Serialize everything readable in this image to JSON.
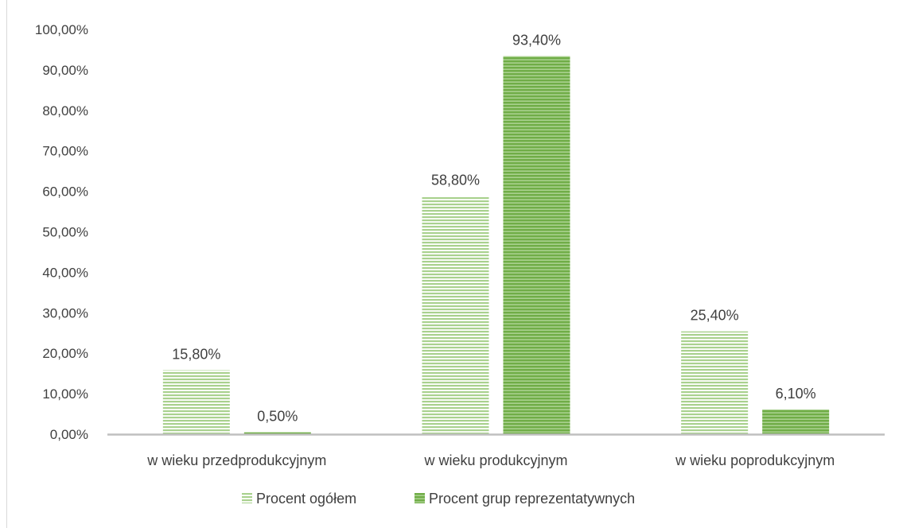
{
  "chart_data": {
    "type": "bar",
    "title": "",
    "xlabel": "",
    "ylabel": "",
    "categories": [
      "w wieku przedprodukcyjnym",
      "w wieku produkcyjnym",
      "w wieku poprodukcyjnym"
    ],
    "series": [
      {
        "name": "Procent ogółem",
        "values": [
          15.8,
          58.8,
          25.4
        ],
        "labels": [
          "15,80%",
          "58,80%",
          "25,40%"
        ],
        "color": "#a9d18e"
      },
      {
        "name": "Procent grup reprezentatywnych",
        "values": [
          0.5,
          93.4,
          6.1
        ],
        "labels": [
          "0,50%",
          "93,40%",
          "6,10%"
        ],
        "color": "#70ad47"
      }
    ],
    "ylim": [
      0,
      100
    ],
    "yticks": [
      0,
      10,
      20,
      30,
      40,
      50,
      60,
      70,
      80,
      90,
      100
    ],
    "ytick_labels": [
      "0,00%",
      "10,00%",
      "20,00%",
      "30,00%",
      "40,00%",
      "50,00%",
      "60,00%",
      "70,00%",
      "80,00%",
      "90,00%",
      "100,00%"
    ],
    "grid": false,
    "legend_position": "bottom",
    "bar_fill": "horizontal-stripes"
  }
}
